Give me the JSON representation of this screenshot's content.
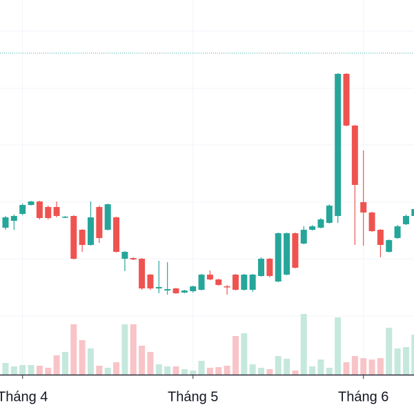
{
  "chart_data": {
    "type": "candlestick",
    "categories": [
      null,
      null,
      "Tháng 4",
      null,
      null,
      null,
      null,
      null,
      null,
      null,
      null,
      null,
      null,
      null,
      null,
      null,
      null,
      null,
      null,
      null,
      null,
      null,
      "Tháng 5",
      null,
      null,
      null,
      null,
      null,
      null,
      null,
      null,
      null,
      null,
      null,
      null,
      null,
      null,
      null,
      null,
      null,
      null,
      null,
      "Tháng 6",
      null,
      null,
      null,
      null,
      null,
      null
    ],
    "open": [
      270,
      280,
      290,
      303,
      308,
      300,
      300,
      285,
      287,
      267,
      245,
      300,
      267,
      285,
      225,
      226,
      225,
      202,
      182,
      179,
      182,
      176,
      178,
      180,
      202,
      195,
      185,
      202,
      180,
      180,
      200,
      225,
      192,
      202,
      262,
      247,
      267,
      270,
      277,
      287,
      493,
      418,
      307,
      292,
      267,
      235,
      255,
      275,
      287
    ],
    "high": [
      287,
      289,
      305,
      309,
      309,
      302,
      308,
      287,
      288,
      268,
      308,
      302,
      305,
      286,
      236,
      227,
      226,
      203,
      222,
      220,
      183,
      180,
      186,
      203,
      208,
      196,
      187,
      203,
      203,
      203,
      227,
      226,
      263,
      263,
      263,
      272,
      274,
      284,
      304,
      494,
      494,
      419,
      382,
      293,
      268,
      253,
      274,
      289,
      299
    ],
    "low": [
      267,
      267,
      288,
      302,
      282,
      282,
      285,
      284,
      224,
      235,
      244,
      248,
      266,
      234,
      207,
      223,
      180,
      180,
      175,
      173,
      174,
      175,
      176,
      179,
      194,
      186,
      173,
      179,
      179,
      177,
      199,
      198,
      191,
      201,
      211,
      246,
      266,
      269,
      276,
      277,
      417,
      245,
      244,
      264,
      227,
      234,
      254,
      274,
      286
    ],
    "close": [
      285,
      287,
      303,
      308,
      284,
      284,
      287,
      286,
      225,
      245,
      285,
      255,
      304,
      235,
      235,
      224,
      182,
      182,
      184,
      181,
      175,
      179,
      185,
      202,
      195,
      187,
      184,
      180,
      202,
      202,
      225,
      200,
      262,
      262,
      212,
      267,
      272,
      282,
      302,
      493,
      418,
      332,
      292,
      265,
      245,
      252,
      272,
      287,
      297
    ],
    "volume": [
      17,
      12,
      14,
      14,
      13,
      10,
      28,
      33,
      73,
      50,
      38,
      13,
      10,
      18,
      73,
      73,
      42,
      33,
      15,
      12,
      12,
      8,
      6,
      20,
      10,
      11,
      13,
      56,
      60,
      15,
      10,
      8,
      27,
      23,
      6,
      88,
      12,
      22,
      10,
      83,
      18,
      27,
      24,
      22,
      24,
      68,
      38,
      40,
      58
    ],
    "up_color": "#26a69a",
    "down_color": "#ef5350",
    "up_volume_color": "#c5e8dc",
    "down_volume_color": "#f8c4c7",
    "ylim": [
      0,
      600
    ],
    "yticks": [
      142,
      225,
      307,
      390,
      472,
      555
    ],
    "vlim": [
      0,
      543
    ],
    "ref_line": 523,
    "ref_color": "#26a69a",
    "grid": true
  }
}
